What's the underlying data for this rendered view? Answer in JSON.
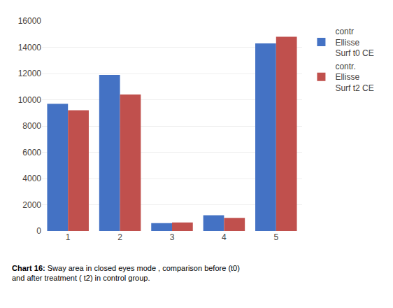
{
  "chart_data": {
    "type": "bar",
    "categories": [
      "1",
      "2",
      "3",
      "4",
      "5"
    ],
    "series": [
      {
        "name": "contr\nEllisse\nSurf t0 CE",
        "color": "#4472C4",
        "values": [
          9700,
          11900,
          600,
          1200,
          14300
        ]
      },
      {
        "name": "contr.\nEllisse\nSurf t2 CE",
        "color": "#C0504D",
        "values": [
          9200,
          10400,
          650,
          1000,
          14800
        ]
      }
    ],
    "ylim": [
      0,
      16000
    ],
    "yticks": [
      0,
      2000,
      4000,
      6000,
      8000,
      10000,
      12000,
      14000,
      16000
    ],
    "grid": true,
    "legend": "right",
    "annotations": [
      "Chart 16:",
      " Sway area in closed eyes mode , comparison before (t0)\nand after treatment ( t2) in control group."
    ]
  }
}
